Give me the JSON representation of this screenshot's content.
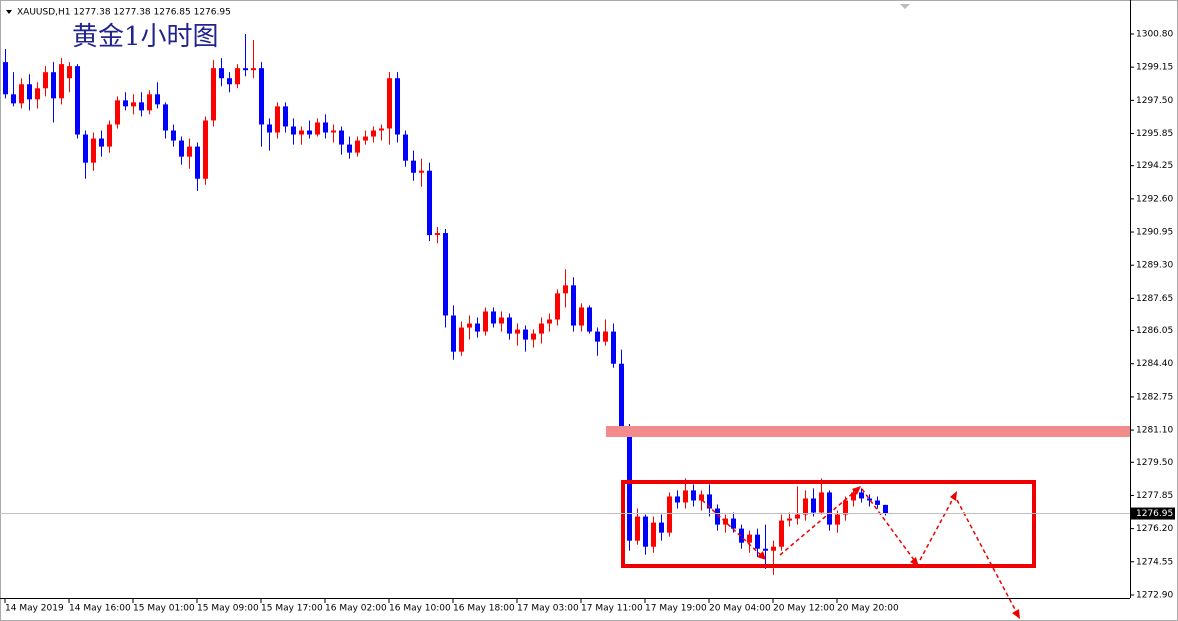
{
  "chart_data": {
    "type": "candlestick",
    "header": "XAUUSD,H1 1277.38 1277.38 1276.85 1276.95",
    "title": "黄金1小时图",
    "categories": [
      "14 May 2019",
      null,
      null,
      null,
      null,
      null,
      null,
      null,
      "14 May 16:00",
      null,
      null,
      null,
      null,
      null,
      null,
      null,
      "15 May 01:00",
      null,
      null,
      null,
      null,
      null,
      null,
      null,
      "15 May 09:00",
      null,
      null,
      null,
      null,
      null,
      null,
      null,
      "15 May 17:00",
      null,
      null,
      null,
      null,
      null,
      null,
      null,
      "16 May 02:00",
      null,
      null,
      null,
      null,
      null,
      null,
      null,
      "16 May 10:00",
      null,
      null,
      null,
      null,
      null,
      null,
      null,
      "16 May 18:00",
      null,
      null,
      null,
      null,
      null,
      null,
      null,
      "17 May 03:00",
      null,
      null,
      null,
      null,
      null,
      null,
      null,
      "17 May 11:00",
      null,
      null,
      null,
      null,
      null,
      null,
      null,
      "17 May 19:00",
      null,
      null,
      null,
      null,
      null,
      null,
      null,
      "20 May 04:00",
      null,
      null,
      null,
      null,
      null,
      null,
      null,
      "20 May 12:00",
      null,
      null,
      null,
      null,
      null,
      null,
      null,
      "20 May 20:00",
      null,
      null,
      null,
      null,
      null,
      null
    ],
    "open": [
      1299.4,
      1297.8,
      1297.35,
      1298.3,
      1297.55,
      1298.1,
      1298.9,
      1297.6,
      1298.6,
      1299.2,
      1295.8,
      1294.4,
      1295.6,
      1295.2,
      1296.3,
      1297.5,
      1297.2,
      1297.4,
      1297.0,
      1297.8,
      1297.3,
      1296.0,
      1295.5,
      1294.7,
      1295.2,
      1293.6,
      1296.5,
      1299.1,
      1298.6,
      1298.3,
      1299.1,
      1299.0,
      1299.1,
      1296.3,
      1295.9,
      1297.2,
      1296.2,
      1295.8,
      1296.0,
      1295.8,
      1296.4,
      1295.9,
      1296.0,
      1295.3,
      1294.9,
      1295.5,
      1295.7,
      1296.0,
      1296.1,
      1298.6,
      1295.8,
      1294.5,
      1293.9,
      1294.0,
      1290.8,
      1290.9,
      1286.8,
      1285.0,
      1286.2,
      1286.4,
      1286.0,
      1287.0,
      1286.4,
      1286.7,
      1285.9,
      1286.1,
      1285.6,
      1285.9,
      1286.4,
      1286.6,
      1287.9,
      1288.3,
      1286.3,
      1287.2,
      1286.0,
      1285.5,
      1286.0,
      1284.4,
      1281.3,
      1275.6,
      1276.8,
      1275.3,
      1276.5,
      1276.0,
      1277.8,
      1277.5,
      1278.1,
      1277.6,
      1277.9,
      1277.2,
      1276.4,
      1276.7,
      1276.2,
      1275.5,
      1275.9,
      1275.2,
      1275.1,
      1275.3,
      1276.6,
      1276.7,
      1276.9,
      1277.7,
      1277.0,
      1278.0,
      1276.4,
      1276.9,
      1277.6,
      1278.0,
      1277.7,
      1277.6,
      1277.38
    ],
    "high": [
      1300.05,
      1298.9,
      1298.6,
      1298.8,
      1298.4,
      1299.2,
      1299.4,
      1299.6,
      1299.4,
      1299.3,
      1296.0,
      1295.9,
      1296.0,
      1296.5,
      1297.7,
      1297.9,
      1297.8,
      1297.9,
      1298.0,
      1298.4,
      1297.4,
      1296.3,
      1295.7,
      1295.6,
      1295.4,
      1296.7,
      1299.5,
      1299.6,
      1298.9,
      1299.3,
      1300.8,
      1300.5,
      1299.4,
      1296.6,
      1297.4,
      1297.4,
      1296.6,
      1296.2,
      1296.5,
      1296.6,
      1296.8,
      1296.3,
      1296.2,
      1295.7,
      1295.7,
      1296.0,
      1296.2,
      1296.3,
      1298.9,
      1298.9,
      1296.0,
      1295.0,
      1294.6,
      1294.4,
      1291.2,
      1291.1,
      1287.3,
      1286.5,
      1286.8,
      1286.7,
      1287.2,
      1287.2,
      1287.0,
      1286.9,
      1286.4,
      1286.3,
      1286.1,
      1286.7,
      1286.9,
      1288.1,
      1289.1,
      1288.7,
      1287.4,
      1287.3,
      1286.2,
      1286.6,
      1286.4,
      1285.1,
      1281.4,
      1277.2,
      1276.9,
      1276.8,
      1276.9,
      1278.0,
      1278.1,
      1278.7,
      1278.4,
      1278.1,
      1278.4,
      1277.4,
      1276.9,
      1277.0,
      1276.4,
      1276.1,
      1276.2,
      1276.4,
      1275.6,
      1276.9,
      1277.0,
      1278.3,
      1278.1,
      1278.2,
      1278.7,
      1278.1,
      1277.1,
      1277.8,
      1278.2,
      1278.2,
      1277.9,
      1277.8,
      1277.38
    ],
    "low": [
      1297.6,
      1297.2,
      1297.1,
      1297.0,
      1297.1,
      1297.7,
      1296.4,
      1297.3,
      1297.9,
      1295.6,
      1293.6,
      1294.0,
      1294.7,
      1294.9,
      1296.1,
      1297.0,
      1296.8,
      1296.7,
      1296.8,
      1297.1,
      1295.6,
      1295.2,
      1294.3,
      1294.1,
      1293.0,
      1293.3,
      1296.2,
      1298.2,
      1297.9,
      1298.1,
      1298.7,
      1298.6,
      1295.2,
      1295.0,
      1295.6,
      1295.9,
      1295.3,
      1295.3,
      1295.6,
      1295.7,
      1295.6,
      1295.4,
      1294.8,
      1294.6,
      1294.7,
      1295.3,
      1295.4,
      1295.5,
      1295.3,
      1295.4,
      1294.2,
      1293.5,
      1293.2,
      1290.5,
      1290.4,
      1286.2,
      1284.6,
      1284.8,
      1285.6,
      1285.7,
      1285.8,
      1286.2,
      1286.0,
      1285.6,
      1285.3,
      1285.0,
      1285.2,
      1285.4,
      1286.0,
      1286.3,
      1287.2,
      1286.0,
      1286.0,
      1285.9,
      1284.8,
      1285.3,
      1284.2,
      1281.0,
      1275.1,
      1275.4,
      1274.9,
      1275.0,
      1275.6,
      1275.8,
      1277.2,
      1277.2,
      1277.3,
      1277.1,
      1276.8,
      1276.1,
      1276.0,
      1276.0,
      1275.2,
      1275.0,
      1274.8,
      1274.2,
      1273.9,
      1275.1,
      1276.3,
      1276.4,
      1276.6,
      1276.8,
      1276.9,
      1276.1,
      1276.0,
      1276.6,
      1277.3,
      1277.5,
      1277.3,
      1277.2,
      1276.85
    ],
    "close": [
      1297.8,
      1297.35,
      1298.3,
      1297.55,
      1298.1,
      1298.9,
      1297.6,
      1299.3,
      1299.2,
      1295.8,
      1294.4,
      1295.6,
      1295.2,
      1296.3,
      1297.5,
      1297.2,
      1297.4,
      1297.0,
      1297.8,
      1297.3,
      1296.0,
      1295.5,
      1294.7,
      1295.2,
      1293.6,
      1296.5,
      1299.1,
      1298.6,
      1298.3,
      1299.1,
      1299.0,
      1299.1,
      1296.3,
      1295.9,
      1297.2,
      1296.2,
      1295.8,
      1296.0,
      1295.8,
      1296.4,
      1295.9,
      1296.0,
      1295.3,
      1294.9,
      1295.5,
      1295.7,
      1296.0,
      1296.1,
      1298.6,
      1295.8,
      1294.5,
      1293.9,
      1294.0,
      1290.8,
      1290.9,
      1286.8,
      1285.0,
      1286.2,
      1286.4,
      1286.0,
      1287.0,
      1286.4,
      1286.7,
      1285.9,
      1286.1,
      1285.6,
      1285.9,
      1286.4,
      1286.6,
      1287.9,
      1288.3,
      1286.3,
      1287.2,
      1286.0,
      1285.5,
      1286.0,
      1284.4,
      1281.3,
      1275.6,
      1276.8,
      1275.3,
      1276.5,
      1276.0,
      1277.8,
      1277.5,
      1278.1,
      1277.6,
      1277.9,
      1277.2,
      1276.4,
      1276.7,
      1276.2,
      1275.5,
      1275.9,
      1275.2,
      1275.1,
      1275.3,
      1276.6,
      1276.7,
      1276.9,
      1277.7,
      1277.0,
      1278.0,
      1276.4,
      1276.9,
      1277.6,
      1278.0,
      1277.7,
      1277.6,
      1277.38,
      1276.95
    ],
    "up_color": "#ff0000",
    "down_color": "#0000ff",
    "last_price": 1276.95,
    "ylim": [
      1272.65,
      1302.49
    ],
    "yticks": [
      {
        "value": 1300.8,
        "label": "1300.80"
      },
      {
        "value": 1299.15,
        "label": "1299.15"
      },
      {
        "value": 1297.5,
        "label": "1297.50"
      },
      {
        "value": 1295.85,
        "label": "1295.85"
      },
      {
        "value": 1294.25,
        "label": "1294.25"
      },
      {
        "value": 1292.6,
        "label": "1292.60"
      },
      {
        "value": 1290.95,
        "label": "1290.95"
      },
      {
        "value": 1289.3,
        "label": "1289.30"
      },
      {
        "value": 1287.65,
        "label": "1287.65"
      },
      {
        "value": 1286.05,
        "label": "1286.05"
      },
      {
        "value": 1284.4,
        "label": "1284.40"
      },
      {
        "value": 1282.75,
        "label": "1282.75"
      },
      {
        "value": 1281.1,
        "label": "1281.10"
      },
      {
        "value": 1279.5,
        "label": "1279.50"
      },
      {
        "value": 1277.85,
        "label": "1277.85"
      },
      {
        "value": 1276.2,
        "label": "1276.20"
      },
      {
        "value": 1274.55,
        "label": "1274.55"
      },
      {
        "value": 1272.9,
        "label": "1272.90"
      }
    ]
  }
}
